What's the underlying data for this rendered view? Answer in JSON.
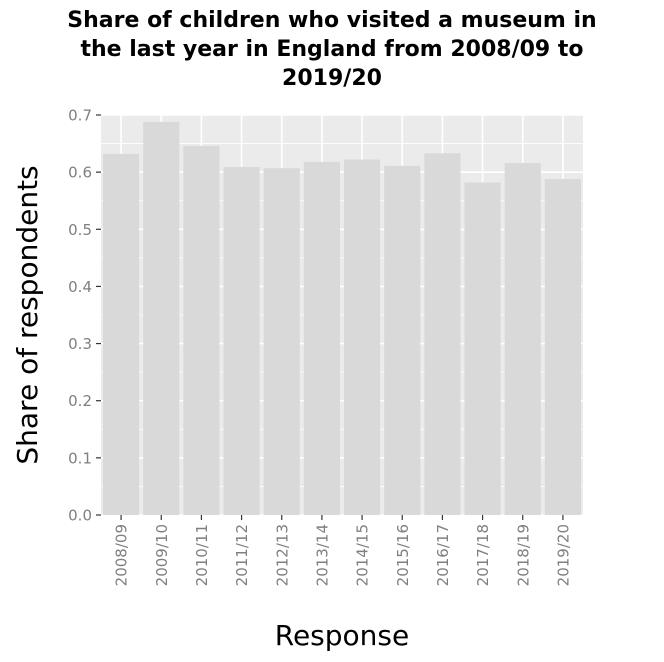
{
  "chart_data": {
    "type": "bar",
    "title_lines": [
      "Share of children who visited a museum in",
      "the last year in England from 2008/09 to",
      "2019/20"
    ],
    "xlabel": "Response",
    "ylabel": "Share of respondents",
    "categories": [
      "2008/09",
      "2009/10",
      "2010/11",
      "2011/12",
      "2012/13",
      "2013/14",
      "2014/15",
      "2015/16",
      "2016/17",
      "2017/18",
      "2018/19",
      "2019/20"
    ],
    "values": [
      0.632,
      0.688,
      0.646,
      0.609,
      0.607,
      0.618,
      0.622,
      0.611,
      0.633,
      0.582,
      0.616,
      0.588
    ],
    "ylim": [
      0,
      0.7
    ],
    "yticks": [
      "0.0",
      "0.1",
      "0.2",
      "0.3",
      "0.4",
      "0.5",
      "0.6",
      "0.7"
    ],
    "grid": true,
    "colors": {
      "panel": "#ebebeb",
      "bar": "#d9d9d9",
      "grid": "#ffffff",
      "tick": "#7f7f7f"
    }
  }
}
